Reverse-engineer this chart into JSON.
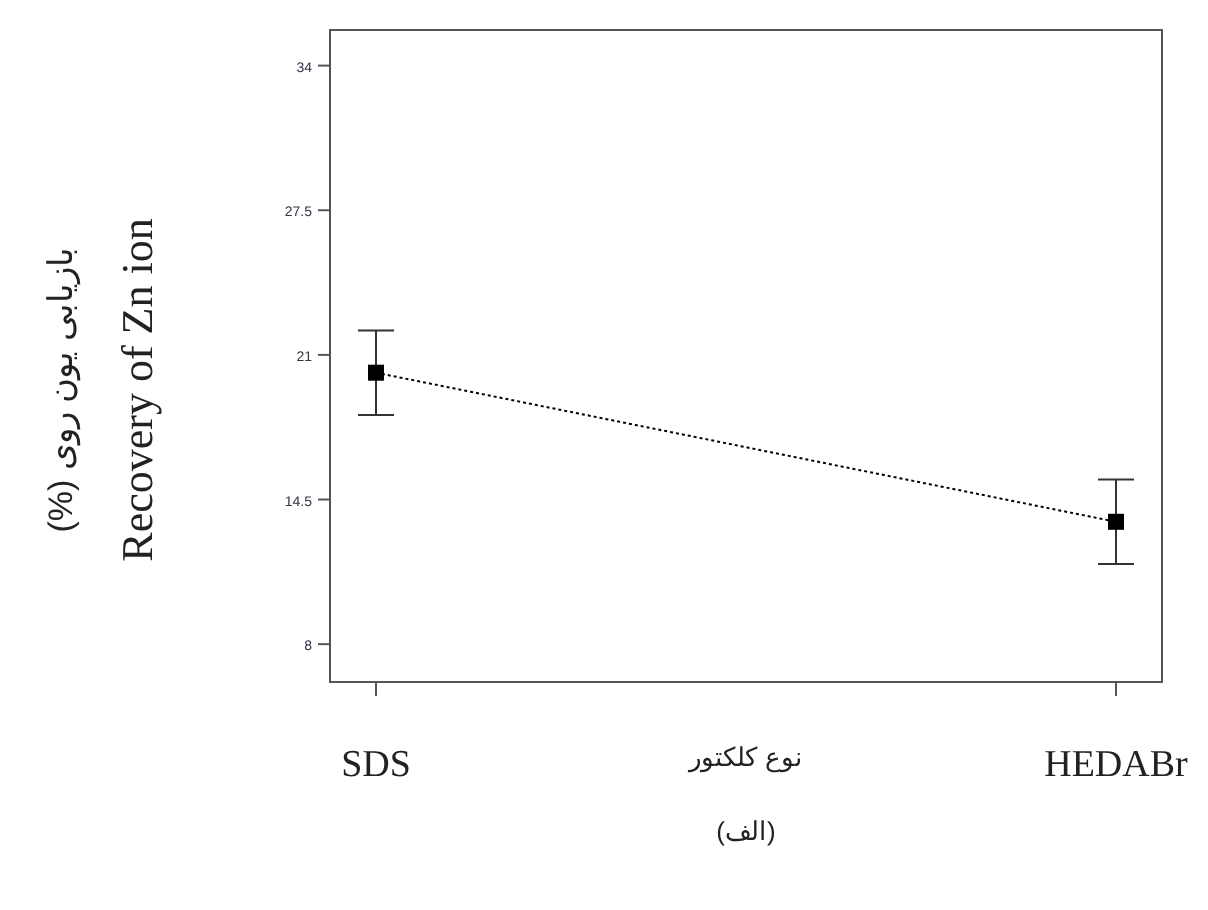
{
  "chart_data": {
    "type": "line",
    "ylabel": "بازیابی یون روی (%)\nRecovery of Zn ion",
    "xlabel": "نوع کلکتور",
    "annotations": [
      "(الف)"
    ],
    "categories": [
      "SDS",
      "HEDABr"
    ],
    "series": [
      {
        "color": "#000000",
        "values": [
          20.2,
          13.5
        ],
        "errors": [
          1.9,
          1.9
        ]
      }
    ],
    "ylim": [
      6.3,
      35.6
    ],
    "yticks": [
      8,
      14.5,
      21,
      27.5,
      34
    ],
    "marker": "square",
    "line_style": "dotted",
    "grid": false
  }
}
